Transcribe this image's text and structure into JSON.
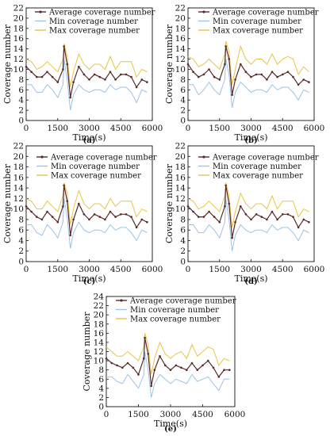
{
  "figure": {
    "colors": {
      "average": "#5a2a2a",
      "min": "#9dc3e6",
      "max": "#e8c547",
      "axis": "#111111",
      "background": "#ffffff"
    }
  },
  "chart_data": [
    {
      "type": "line",
      "panel": "(a)",
      "xlabel": "Time(s)",
      "ylabel": "Coverage number",
      "xlim": [
        0,
        6000
      ],
      "ylim": [
        0,
        22
      ],
      "xticks": [
        0,
        1500,
        3000,
        4500,
        6000
      ],
      "yticks": [
        0,
        2,
        4,
        6,
        8,
        10,
        12,
        14,
        16,
        18,
        20,
        22
      ],
      "legend_position": "top-center",
      "grid": false,
      "x": [
        0,
        250,
        500,
        750,
        1000,
        1250,
        1500,
        1750,
        1800,
        1950,
        2100,
        2250,
        2500,
        2750,
        3000,
        3250,
        3500,
        3750,
        4000,
        4250,
        4500,
        4750,
        5000,
        5250,
        5500,
        5750
      ],
      "series": [
        {
          "name": "Average coverage number",
          "values": [
            10.5,
            9.5,
            8.5,
            8.5,
            9.5,
            8.5,
            7.5,
            10.0,
            14.5,
            11.0,
            4.5,
            7.5,
            10.5,
            9.0,
            8.0,
            9.0,
            8.5,
            8.0,
            9.5,
            8.0,
            9.0,
            9.0,
            8.5,
            6.5,
            8.0,
            7.5
          ]
        },
        {
          "name": "Min coverage number",
          "values": [
            7.0,
            7.0,
            5.5,
            5.5,
            7.0,
            6.0,
            4.5,
            7.0,
            12.0,
            8.0,
            2.0,
            5.0,
            7.0,
            6.0,
            5.5,
            6.0,
            6.0,
            5.5,
            7.0,
            6.0,
            6.5,
            6.5,
            5.5,
            3.5,
            6.0,
            5.5
          ]
        },
        {
          "name": "Max coverage number",
          "values": [
            12.0,
            11.5,
            10.0,
            10.5,
            11.5,
            10.5,
            9.5,
            12.0,
            15.0,
            12.5,
            6.5,
            9.5,
            13.0,
            11.0,
            10.0,
            11.0,
            11.0,
            10.0,
            12.5,
            10.0,
            11.5,
            11.5,
            11.5,
            8.5,
            10.0,
            9.5
          ]
        }
      ]
    },
    {
      "type": "line",
      "panel": "(b)",
      "xlabel": "Time(s)",
      "ylabel": "Coverage number",
      "xlim": [
        0,
        6000
      ],
      "ylim": [
        0,
        22
      ],
      "xticks": [
        0,
        1500,
        3000,
        4500,
        6000
      ],
      "yticks": [
        0,
        2,
        4,
        6,
        8,
        10,
        12,
        14,
        16,
        18,
        20,
        22
      ],
      "legend_position": "top-center",
      "grid": false,
      "x": [
        0,
        250,
        500,
        750,
        1000,
        1250,
        1500,
        1750,
        1800,
        1950,
        2100,
        2250,
        2500,
        2750,
        3000,
        3250,
        3500,
        3750,
        4000,
        4250,
        4500,
        4750,
        5000,
        5250,
        5500,
        5750
      ],
      "series": [
        {
          "name": "Average coverage number",
          "values": [
            11.0,
            9.5,
            8.5,
            9.0,
            10.0,
            8.5,
            8.0,
            11.0,
            14.5,
            12.0,
            5.0,
            8.0,
            11.0,
            9.5,
            8.5,
            9.0,
            9.0,
            8.0,
            9.5,
            8.5,
            9.0,
            9.5,
            8.5,
            7.0,
            8.0,
            7.5
          ]
        },
        {
          "name": "Min coverage number",
          "values": [
            7.0,
            7.0,
            5.0,
            6.0,
            7.5,
            6.0,
            5.0,
            8.0,
            12.0,
            9.0,
            2.5,
            5.5,
            7.5,
            6.5,
            5.5,
            6.0,
            6.0,
            5.5,
            7.0,
            6.0,
            6.5,
            6.5,
            5.5,
            4.0,
            6.0,
            5.5
          ]
        },
        {
          "name": "Max coverage number",
          "values": [
            12.5,
            12.0,
            10.5,
            11.0,
            12.0,
            11.0,
            10.0,
            13.0,
            15.5,
            13.5,
            7.0,
            10.0,
            14.5,
            12.0,
            11.0,
            12.0,
            12.0,
            11.0,
            13.0,
            11.0,
            12.0,
            12.5,
            12.0,
            9.0,
            10.5,
            9.5
          ]
        }
      ]
    },
    {
      "type": "line",
      "panel": "(c)",
      "xlabel": "Time(s)",
      "ylabel": "Coverage number",
      "xlim": [
        0,
        6000
      ],
      "ylim": [
        0,
        22
      ],
      "xticks": [
        0,
        1500,
        3000,
        4500,
        6000
      ],
      "yticks": [
        0,
        2,
        4,
        6,
        8,
        10,
        12,
        14,
        16,
        18,
        20,
        22
      ],
      "legend_position": "top-center",
      "grid": false,
      "x": [
        0,
        250,
        500,
        750,
        1000,
        1250,
        1500,
        1750,
        1800,
        1950,
        2100,
        2250,
        2500,
        2750,
        3000,
        3250,
        3500,
        3750,
        4000,
        4250,
        4500,
        4750,
        5000,
        5250,
        5500,
        5750
      ],
      "series": [
        {
          "name": "Average coverage number",
          "values": [
            10.5,
            9.5,
            8.5,
            8.0,
            9.5,
            8.5,
            7.5,
            10.5,
            14.5,
            11.5,
            5.0,
            8.0,
            11.0,
            9.0,
            8.0,
            9.0,
            8.5,
            8.0,
            9.5,
            8.5,
            9.0,
            9.0,
            8.5,
            6.5,
            8.0,
            7.5
          ]
        },
        {
          "name": "Min coverage number",
          "values": [
            7.0,
            7.0,
            5.5,
            5.0,
            7.0,
            6.0,
            4.5,
            7.5,
            12.0,
            8.5,
            2.5,
            5.5,
            7.5,
            6.0,
            5.5,
            6.0,
            6.0,
            5.5,
            7.0,
            6.0,
            6.5,
            6.5,
            5.5,
            4.0,
            6.0,
            5.5
          ]
        },
        {
          "name": "Max coverage number",
          "values": [
            12.0,
            11.5,
            10.0,
            10.0,
            11.5,
            10.5,
            9.5,
            12.5,
            15.0,
            13.0,
            7.0,
            10.0,
            13.5,
            11.0,
            10.0,
            11.0,
            11.0,
            10.0,
            12.0,
            10.5,
            11.5,
            11.5,
            11.5,
            8.5,
            10.0,
            9.5
          ]
        }
      ]
    },
    {
      "type": "line",
      "panel": "(d)",
      "xlabel": "Time(s)",
      "ylabel": "Coverage number",
      "xlim": [
        0,
        6000
      ],
      "ylim": [
        0,
        22
      ],
      "xticks": [
        0,
        1500,
        3000,
        4500,
        6000
      ],
      "yticks": [
        0,
        2,
        4,
        6,
        8,
        10,
        12,
        14,
        16,
        18,
        20,
        22
      ],
      "legend_position": "top-center",
      "grid": false,
      "x": [
        0,
        250,
        500,
        750,
        1000,
        1250,
        1500,
        1750,
        1800,
        1950,
        2100,
        2250,
        2500,
        2750,
        3000,
        3250,
        3500,
        3750,
        4000,
        4250,
        4500,
        4750,
        5000,
        5250,
        5500,
        5750
      ],
      "series": [
        {
          "name": "Average coverage number",
          "values": [
            10.5,
            9.5,
            8.5,
            8.5,
            9.5,
            8.5,
            7.5,
            10.5,
            14.5,
            11.0,
            4.5,
            7.5,
            10.5,
            9.0,
            8.0,
            9.0,
            8.5,
            8.0,
            9.5,
            8.0,
            9.0,
            9.0,
            8.5,
            6.5,
            8.0,
            7.5
          ]
        },
        {
          "name": "Min coverage number",
          "values": [
            7.0,
            7.0,
            5.5,
            5.5,
            7.0,
            6.0,
            4.5,
            7.5,
            12.0,
            8.0,
            2.0,
            5.0,
            7.0,
            6.0,
            5.5,
            6.0,
            6.0,
            5.5,
            7.0,
            6.0,
            6.5,
            6.5,
            5.5,
            4.0,
            6.0,
            5.5
          ]
        },
        {
          "name": "Max coverage number",
          "values": [
            12.0,
            11.5,
            10.0,
            10.5,
            11.5,
            10.5,
            9.5,
            12.5,
            15.0,
            12.5,
            6.5,
            9.5,
            13.0,
            11.0,
            10.0,
            11.0,
            11.0,
            10.0,
            12.5,
            10.0,
            11.5,
            11.5,
            11.5,
            8.5,
            10.0,
            9.5
          ]
        }
      ]
    },
    {
      "type": "line",
      "panel": "(e)",
      "xlabel": "Time(s)",
      "ylabel": "Coverage number",
      "xlim": [
        0,
        6000
      ],
      "ylim": [
        0,
        24
      ],
      "xticks": [
        0,
        1500,
        3000,
        4500,
        6000
      ],
      "yticks": [
        0,
        2,
        4,
        6,
        8,
        10,
        12,
        14,
        16,
        18,
        20,
        22,
        24
      ],
      "legend_position": "top-center",
      "grid": false,
      "x": [
        0,
        250,
        500,
        750,
        1000,
        1250,
        1500,
        1750,
        1800,
        1950,
        2100,
        2250,
        2500,
        2750,
        3000,
        3250,
        3500,
        3750,
        4000,
        4250,
        4500,
        4750,
        5000,
        5250,
        5500,
        5750
      ],
      "series": [
        {
          "name": "Average coverage number",
          "values": [
            10.5,
            9.5,
            9.0,
            8.5,
            9.5,
            8.5,
            7.0,
            10.5,
            15.0,
            11.5,
            4.5,
            8.0,
            11.0,
            9.0,
            8.0,
            9.0,
            8.5,
            8.0,
            9.5,
            8.0,
            9.0,
            10.0,
            8.5,
            6.5,
            8.0,
            8.0
          ]
        },
        {
          "name": "Min coverage number",
          "values": [
            6.5,
            6.5,
            5.5,
            5.0,
            7.0,
            5.5,
            4.0,
            7.0,
            12.0,
            8.0,
            2.0,
            5.0,
            7.0,
            6.0,
            5.0,
            6.0,
            5.5,
            5.0,
            7.0,
            5.5,
            6.0,
            6.5,
            5.0,
            3.5,
            6.0,
            6.0
          ]
        },
        {
          "name": "Max coverage number",
          "values": [
            13.0,
            12.0,
            11.0,
            11.0,
            12.0,
            11.0,
            10.0,
            13.0,
            16.0,
            13.5,
            7.0,
            10.5,
            14.0,
            11.5,
            10.5,
            11.5,
            12.0,
            10.5,
            13.5,
            11.0,
            12.0,
            13.0,
            12.5,
            9.0,
            10.5,
            10.0
          ]
        }
      ]
    }
  ]
}
